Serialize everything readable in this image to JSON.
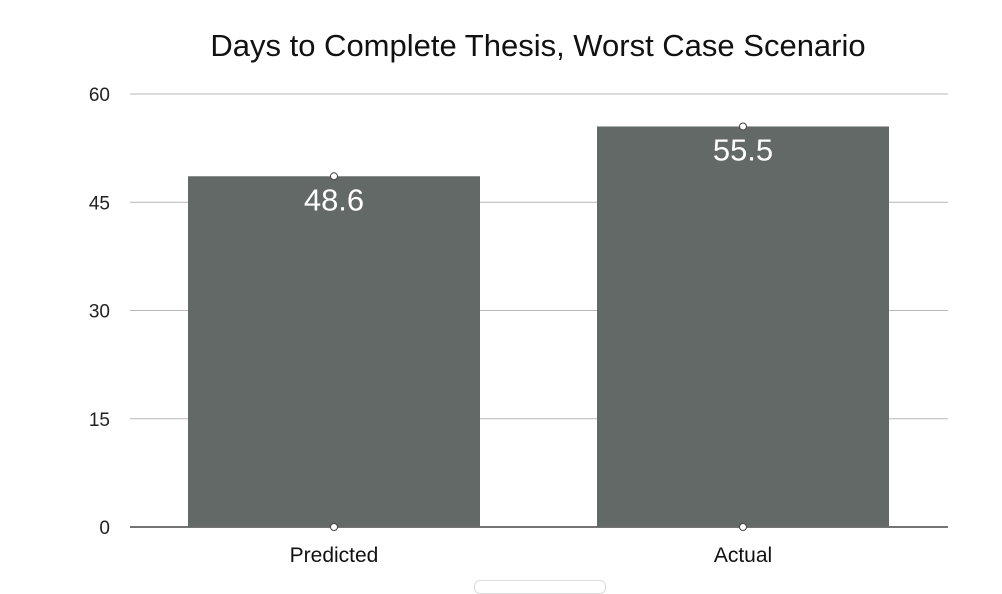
{
  "chart_data": {
    "type": "bar",
    "title": "Days to Complete Thesis, Worst Case Scenario",
    "categories": [
      "Predicted",
      "Actual"
    ],
    "values": [
      48.6,
      55.5
    ],
    "data_labels": [
      "48.6",
      "55.5"
    ],
    "ylim": [
      0,
      60
    ],
    "yticks": [
      0,
      15,
      30,
      45,
      60
    ],
    "ytick_labels": [
      "0",
      "15",
      "30",
      "45",
      "60"
    ],
    "xlabel": "",
    "ylabel": "",
    "grid": true,
    "legend": "none",
    "colors": {
      "bar": "#636966",
      "grid": "#b8b8b8",
      "data_label": "#ffffff"
    }
  }
}
